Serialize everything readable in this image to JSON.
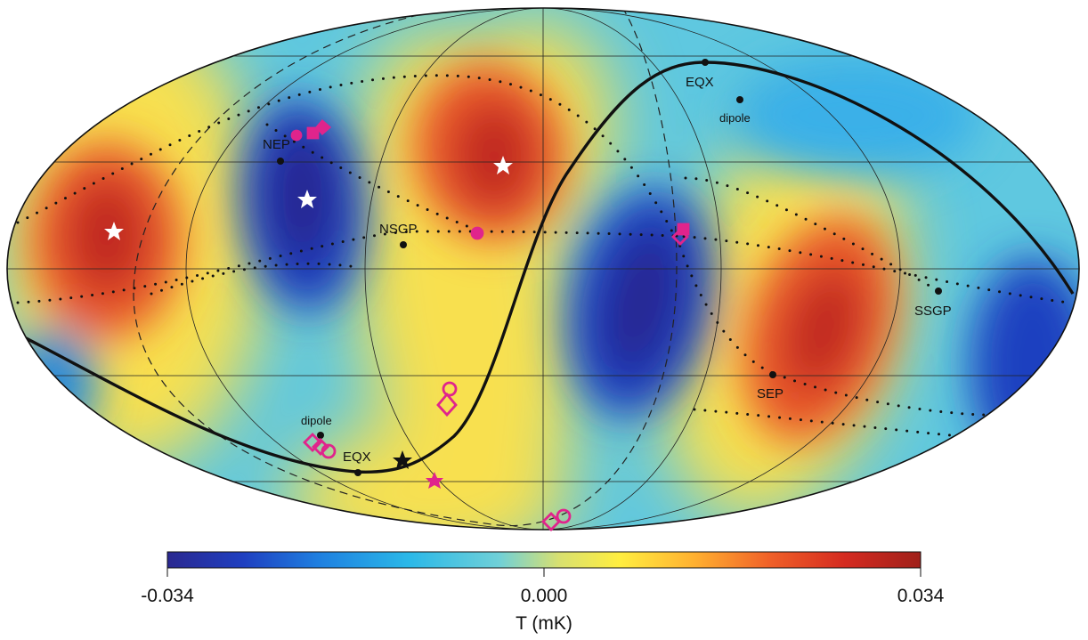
{
  "title": "",
  "colorbar": {
    "min_label": "-0.034",
    "mid_label": "0.000",
    "max_label": "0.034",
    "unit_label": "T (mK)",
    "stops": [
      "#2a2890",
      "#1f3fc0",
      "#1f7fe0",
      "#2ab8e8",
      "#6fd0d8",
      "#d8e070",
      "#ffee40",
      "#ffb030",
      "#f06028",
      "#d42a20",
      "#a0201a"
    ]
  },
  "labels": {
    "nep": "NEP",
    "nsgp": "NSGP",
    "eqx_top": "EQX",
    "dipole_top": "dipole",
    "ssgp": "SSGP",
    "sep": "SEP",
    "dipole_bottom": "dipole",
    "eqx_bottom": "EQX"
  },
  "colors": {
    "marker_magenta": "#e0248c",
    "marker_black": "#111111",
    "star_white": "#ffffff"
  }
}
